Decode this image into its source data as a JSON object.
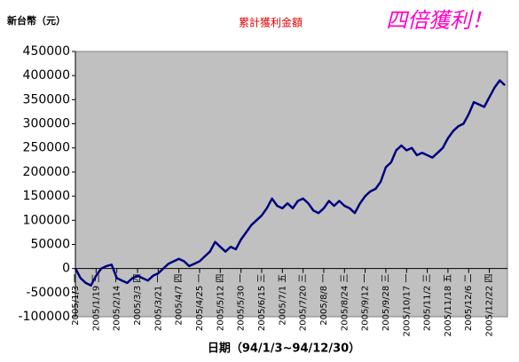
{
  "chart_data": {
    "type": "line",
    "title": "累計獲利金額",
    "annotation": "四倍獲利！",
    "y_label": "新台幣（元）",
    "x_label": "日期（94/1/3~94/12/30）",
    "categories": [
      "2005/1/3 一",
      null,
      null,
      null,
      "2005/1/19 三",
      null,
      null,
      null,
      "2005/2/14 一",
      null,
      null,
      null,
      "2005/3/3 四",
      null,
      null,
      null,
      "2005/3/21 一",
      null,
      null,
      null,
      "2005/4/7 四",
      null,
      null,
      null,
      "2005/4/25 一",
      null,
      null,
      null,
      "2005/5/12 四",
      null,
      null,
      null,
      "2005/5/30 一",
      null,
      null,
      null,
      "2005/6/15 三",
      null,
      null,
      null,
      "2005/7/1 五",
      null,
      null,
      null,
      "2005/7/20 三",
      null,
      null,
      null,
      "2005/8/8 一",
      null,
      null,
      null,
      "2005/8/24 三",
      null,
      null,
      null,
      "2005/9/12 一",
      null,
      null,
      null,
      "2005/9/28 三",
      null,
      null,
      null,
      "2005/10/17 一",
      null,
      null,
      null,
      "2005/11/2 三",
      null,
      null,
      null,
      "2005/11/18 五",
      null,
      null,
      null,
      "2005/12/6 二",
      null,
      null,
      null,
      "2005/12/22 四",
      null,
      null,
      null
    ],
    "values": [
      0,
      -20000,
      -30000,
      -35000,
      -15000,
      0,
      5000,
      8000,
      -20000,
      -25000,
      -30000,
      -20000,
      -15000,
      -20000,
      -25000,
      -15000,
      -10000,
      0,
      10000,
      15000,
      20000,
      15000,
      5000,
      10000,
      15000,
      25000,
      35000,
      55000,
      45000,
      35000,
      45000,
      40000,
      60000,
      75000,
      90000,
      100000,
      110000,
      125000,
      145000,
      130000,
      125000,
      135000,
      125000,
      140000,
      145000,
      135000,
      120000,
      115000,
      125000,
      140000,
      130000,
      140000,
      130000,
      125000,
      115000,
      135000,
      150000,
      160000,
      165000,
      180000,
      210000,
      220000,
      245000,
      255000,
      245000,
      250000,
      235000,
      240000,
      235000,
      230000,
      240000,
      250000,
      270000,
      285000,
      295000,
      300000,
      320000,
      345000,
      340000,
      335000,
      355000,
      375000,
      390000,
      380000
    ],
    "color": "#000080",
    "background": "#c0c0c0",
    "grid": false,
    "ylim": [
      -100000,
      450000
    ],
    "yticks": [
      -100000,
      -50000,
      0,
      50000,
      100000,
      150000,
      200000,
      250000,
      300000,
      350000,
      400000,
      450000
    ]
  }
}
